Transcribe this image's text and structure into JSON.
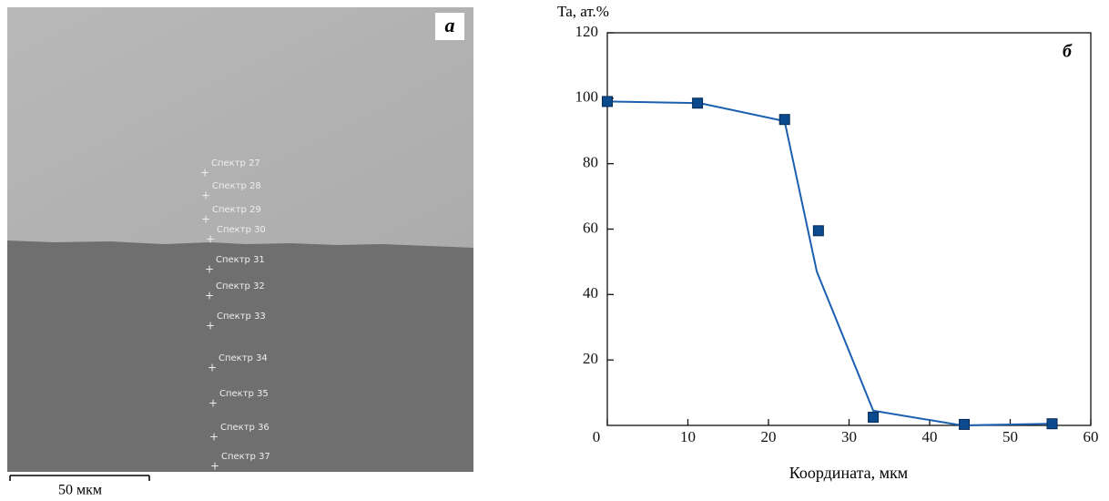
{
  "micrograph": {
    "label": "а",
    "spectra": [
      "Спектр 27",
      "Спектр 28",
      "Спектр 29",
      "Спектр 30",
      "Спектр 31",
      "Спектр 32",
      "Спектр 33",
      "Спектр 34",
      "Спектр 35",
      "Спектр 36",
      "Спектр 37"
    ],
    "scale_bar": "50 мкм"
  },
  "chart_data": {
    "type": "line",
    "panel_label": "б",
    "y_label": "Ta, ат.%",
    "x_label": "Координата, мкм",
    "series": [
      {
        "color": "#0b4a8f",
        "marker": "square",
        "x": [
          0,
          11.2,
          22,
          26.2,
          33,
          44.3,
          55.2
        ],
        "values": [
          99,
          98.5,
          93.5,
          59.5,
          2.5,
          0.3,
          0.5
        ]
      },
      {
        "color": "#1a5fb0",
        "x": [
          0,
          11.5,
          22,
          26,
          33,
          44,
          55
        ],
        "values": [
          99,
          98.5,
          93,
          47,
          4.5,
          0,
          0.5
        ]
      }
    ],
    "xlim": [
      0,
      60
    ],
    "ylim": [
      0,
      120
    ],
    "xticks": [
      0,
      10,
      20,
      30,
      40,
      50,
      60
    ],
    "yticks": [
      20,
      40,
      60,
      80,
      100,
      120
    ]
  }
}
